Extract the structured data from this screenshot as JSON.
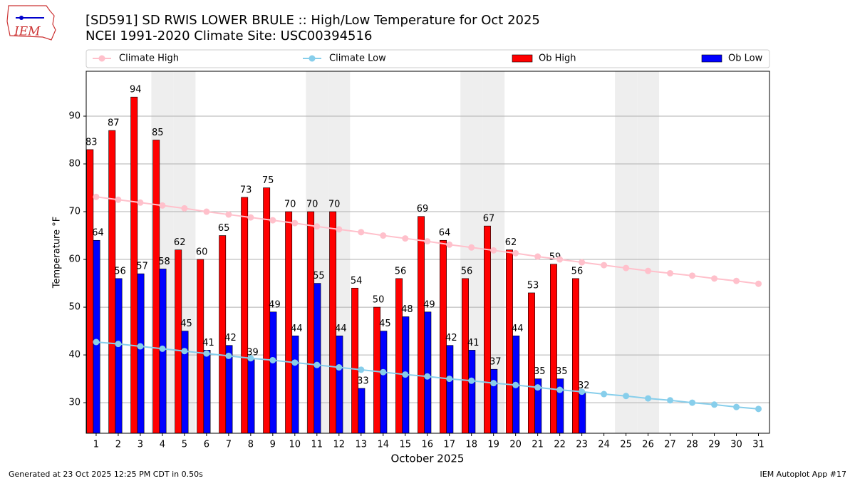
{
  "chart_data": {
    "type": "bar",
    "title": "[SD591] SD RWIS LOWER BRULE :: High/Low Temperature for Oct 2025",
    "subtitle": "NCEI 1991-2020 Climate Site: USC00394516",
    "xlabel": "October 2025",
    "ylabel": "Temperature °F",
    "x": [
      1,
      2,
      3,
      4,
      5,
      6,
      7,
      8,
      9,
      10,
      11,
      12,
      13,
      14,
      15,
      16,
      17,
      18,
      19,
      20,
      21,
      22,
      23,
      24,
      25,
      26,
      27,
      28,
      29,
      30,
      31
    ],
    "xlim": [
      0.55,
      31.5
    ],
    "xticks": [
      1,
      2,
      3,
      4,
      5,
      6,
      7,
      8,
      9,
      10,
      11,
      12,
      13,
      14,
      15,
      16,
      17,
      18,
      19,
      20,
      21,
      22,
      23,
      24,
      25,
      26,
      27,
      28,
      29,
      30,
      31
    ],
    "ylim": [
      23.6,
      99.4
    ],
    "yticks": [
      30,
      40,
      50,
      60,
      70,
      80,
      90
    ],
    "grid": true,
    "weekends": [
      4,
      5,
      11,
      12,
      18,
      19,
      25,
      26
    ],
    "series": [
      {
        "name": "Climate High",
        "type": "line",
        "color": "#ffc0cb",
        "values": [
          73.1,
          72.5,
          71.9,
          71.3,
          70.7,
          70.0,
          69.4,
          68.8,
          68.2,
          67.6,
          66.9,
          66.3,
          65.7,
          65.0,
          64.4,
          63.8,
          63.1,
          62.5,
          61.9,
          61.3,
          60.6,
          60.0,
          59.4,
          58.8,
          58.2,
          57.6,
          57.1,
          56.6,
          56.0,
          55.5,
          54.9
        ]
      },
      {
        "name": "Climate Low",
        "type": "line",
        "color": "#87ceeb",
        "values": [
          42.7,
          42.3,
          41.8,
          41.3,
          40.8,
          40.3,
          39.8,
          39.3,
          38.9,
          38.4,
          37.9,
          37.4,
          36.9,
          36.4,
          35.9,
          35.5,
          35.0,
          34.6,
          34.1,
          33.7,
          33.2,
          32.7,
          32.3,
          31.8,
          31.4,
          30.9,
          30.5,
          30.0,
          29.6,
          29.1,
          28.7
        ]
      },
      {
        "name": "Ob High",
        "type": "bar",
        "color": "#ff0000",
        "values": [
          83,
          87,
          94,
          85,
          62,
          60,
          65,
          73,
          75,
          70,
          70,
          70,
          54,
          50,
          56,
          69,
          64,
          56,
          67,
          62,
          53,
          59,
          56,
          null,
          null,
          null,
          null,
          null,
          null,
          null,
          null
        ]
      },
      {
        "name": "Ob Low",
        "type": "bar",
        "color": "#0000ff",
        "values": [
          64,
          56,
          57,
          58,
          45,
          41,
          42,
          39,
          49,
          44,
          55,
          44,
          33,
          45,
          48,
          49,
          42,
          41,
          37,
          44,
          35,
          35,
          32,
          null,
          null,
          null,
          null,
          null,
          null,
          null,
          null
        ]
      }
    ]
  },
  "logo": "IEM",
  "footer_left": "Generated at 23 Oct 2025 12:25 PM CDT in 0.50s",
  "footer_right": "IEM Autoplot App #17"
}
